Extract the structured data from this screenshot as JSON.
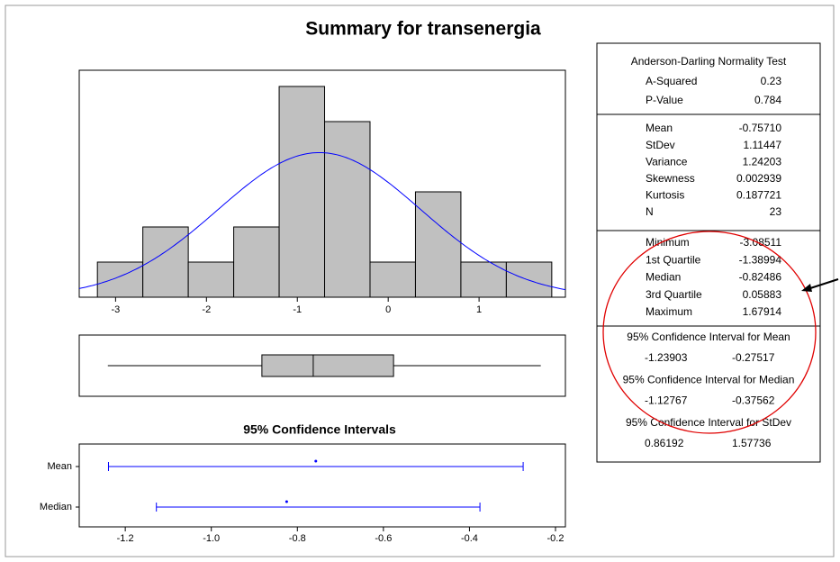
{
  "title": "Summary for transenergia",
  "chart_data": [
    {
      "type": "histogram",
      "bins": [
        -3.2,
        -2.7,
        -2.2,
        -1.7,
        -1.2,
        -0.7,
        -0.2,
        0.3,
        0.8,
        1.3,
        1.8
      ],
      "counts": [
        1,
        2,
        1,
        2,
        6,
        5,
        1,
        3,
        1,
        1
      ],
      "color": "#c0c0c0",
      "curve_color": "#0000ff",
      "xlim": [
        -3.4,
        1.95
      ],
      "xticks": [
        -3,
        -2,
        -1,
        0,
        1
      ]
    },
    {
      "type": "box",
      "color": "#c0c0c0"
    },
    {
      "type": "interval",
      "title": "95% Confidence Intervals",
      "categories": [
        "Mean",
        "Median"
      ],
      "color": "#0000ff",
      "xlim": [
        -1.307,
        -0.177
      ],
      "xticks": [
        -1.2,
        {
          "value": -1,
          "label": "-1.0"
        },
        -0.8,
        -0.6,
        -0.4,
        -0.2
      ]
    }
  ],
  "summary": {
    "test_title": "Anderson-Darling Normality Test",
    "test": [
      [
        "A-Squared",
        0.23
      ],
      [
        "P-Value",
        0.784
      ]
    ],
    "moments": [
      [
        "Mean",
        {
          "value": -0.7571,
          "label": "-0.75710"
        }
      ],
      [
        "StDev",
        1.11447
      ],
      [
        "Variance",
        1.24203
      ],
      [
        "Skewness",
        0.002939
      ],
      [
        "Kurtosis",
        0.187721
      ],
      [
        "N",
        23
      ]
    ],
    "quantiles": [
      [
        "Minimum",
        -3.08511
      ],
      [
        "1st Quartile",
        -1.38994
      ],
      [
        "Median",
        -0.82486
      ],
      [
        "3rd Quartile",
        0.05883
      ],
      [
        "Maximum",
        1.67914
      ]
    ],
    "intervals": [
      {
        "title": "95% Confidence Interval for Mean",
        "low": -1.23903,
        "high": -0.27517
      },
      {
        "title": "95% Confidence Interval for Median",
        "low": -1.12767,
        "high": -0.37562
      },
      {
        "title": "95% Confidence Interval for StDev",
        "low": 0.86192,
        "high": 1.57736
      }
    ]
  }
}
